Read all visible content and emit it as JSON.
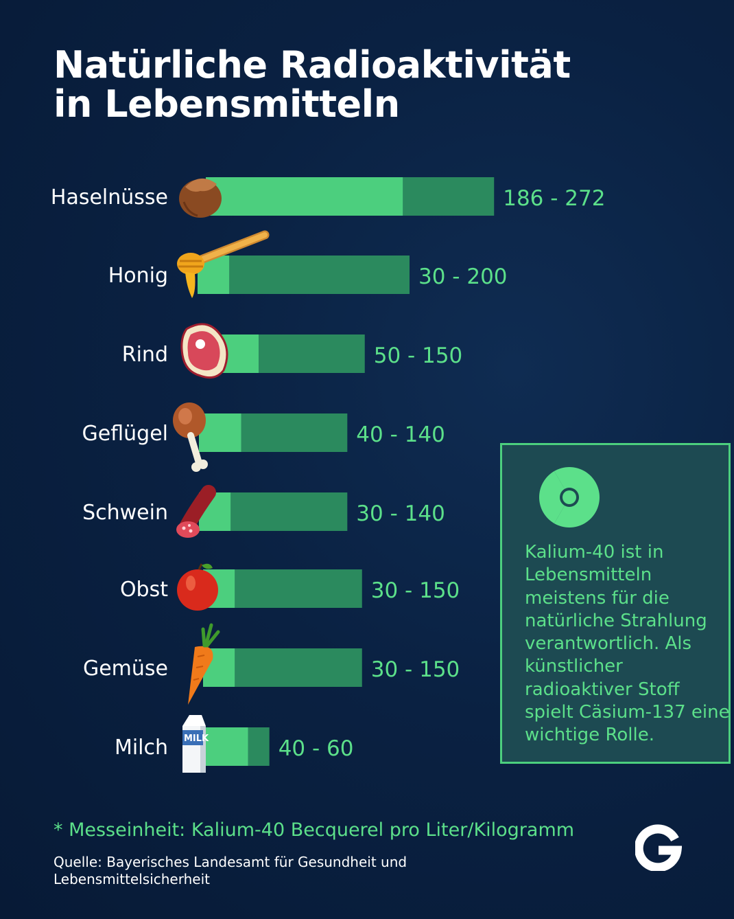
{
  "title": {
    "line1": "Natürliche Radioaktivität",
    "line2": "in Lebensmitteln"
  },
  "chart_data": {
    "type": "bar",
    "orientation": "horizontal",
    "categories": [
      "Haselnüsse",
      "Honig",
      "Rind",
      "Geflügel",
      "Schwein",
      "Obst",
      "Gemüse",
      "Milch"
    ],
    "series": [
      {
        "values": [
          186,
          30,
          50,
          40,
          30,
          30,
          30,
          40
        ]
      },
      {
        "values": [
          272,
          200,
          150,
          140,
          140,
          150,
          150,
          60
        ]
      }
    ],
    "range_labels": [
      "186 - 272",
      "30 - 200",
      "50 - 150",
      "40 - 140",
      "30 - 140",
      "30 - 150",
      "30 - 150",
      "40 - 60"
    ],
    "icons": [
      "hazelnut-icon",
      "honey-dipper-icon",
      "steak-icon",
      "chicken-leg-icon",
      "salami-icon",
      "apple-icon",
      "carrot-icon",
      "milk-carton-icon"
    ],
    "milk_icon_text": "MILK",
    "colors": {
      "min_bar": "#4ccf7e",
      "range_bar": "#2b8a5e",
      "value_text": "#5ce08a"
    }
  },
  "infobox": {
    "icon": "radiation-icon",
    "text": "Kalium-40 ist in Lebensmitteln meistens für die natürliche Strahlung verantwortlich. Als künstlicher radioaktiver Stoff spielt Cäsium-137 eine wichtige Rolle."
  },
  "footer": {
    "unit_note": "* Messeinheit: Kalium-40 Becquerel pro Liter/Kilogramm",
    "source": "Quelle: Bayerisches Landesamt für Gesundheit und Lebensmittelsicherheit",
    "logo": "G"
  }
}
